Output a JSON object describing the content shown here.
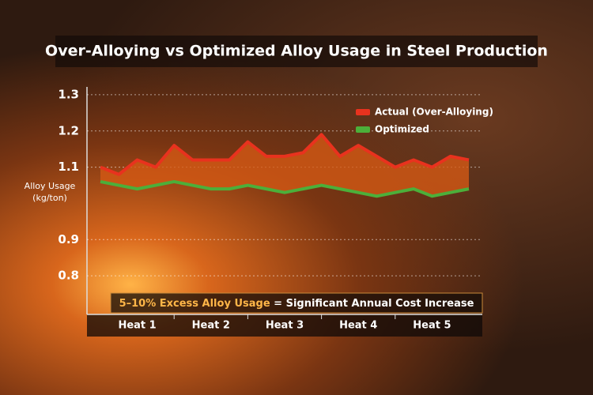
{
  "chart_data": {
    "type": "line",
    "title": "Over-Alloying vs Optimized Alloy Usage in Steel Production",
    "ylabel": "Alloy Usage (kg/ton)",
    "x": [
      0,
      0.25,
      0.5,
      0.75,
      1,
      1.25,
      1.5,
      1.75,
      2,
      2.25,
      2.5,
      2.75,
      3,
      3.25,
      3.5,
      3.75,
      4,
      4.25,
      4.5,
      4.75,
      5
    ],
    "xlim": [
      0,
      5
    ],
    "xticks": [
      {
        "value": 0.5,
        "label": "Heat 1"
      },
      {
        "value": 1.5,
        "label": "Heat 2"
      },
      {
        "value": 2.5,
        "label": "Heat 3"
      },
      {
        "value": 3.5,
        "label": "Heat 4"
      },
      {
        "value": 4.5,
        "label": "Heat 5"
      }
    ],
    "ylim": [
      0.7,
      1.35
    ],
    "yticks": [
      0.8,
      0.9,
      1.1,
      1.2,
      1.3
    ],
    "grid": true,
    "legend": "upper right",
    "series": [
      {
        "name": "Actual (Over-Alloying)",
        "color": "#e8321e",
        "values": [
          1.1,
          1.08,
          1.12,
          1.1,
          1.16,
          1.12,
          1.12,
          1.12,
          1.17,
          1.13,
          1.13,
          1.14,
          1.19,
          1.13,
          1.16,
          1.13,
          1.1,
          1.12,
          1.1,
          1.13,
          1.12
        ]
      },
      {
        "name": "Optimized",
        "color": "#4caf3a",
        "values": [
          1.06,
          1.05,
          1.04,
          1.05,
          1.06,
          1.05,
          1.04,
          1.04,
          1.05,
          1.04,
          1.03,
          1.04,
          1.05,
          1.04,
          1.03,
          1.02,
          1.03,
          1.04,
          1.02,
          1.03,
          1.04
        ]
      }
    ],
    "annotation": {
      "highlight": "5–10% Excess Alloy Usage",
      "text": "= Significant Annual Cost Increase"
    }
  }
}
